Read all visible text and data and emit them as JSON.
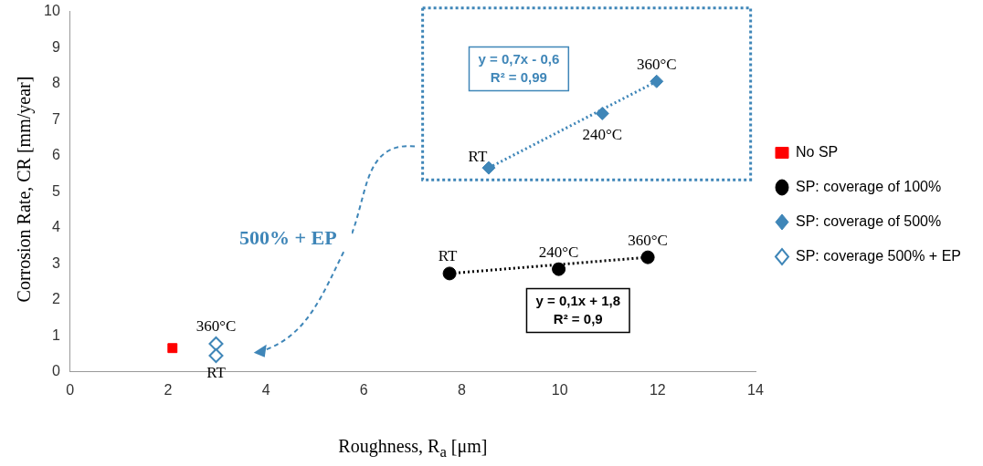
{
  "chart_data": {
    "type": "scatter",
    "xlabel": "Roughness, R$_{a}$ [μm]",
    "ylabel": "Corrosion Rate, CR [mm/year]",
    "xlim": [
      0,
      14
    ],
    "xticks": [
      0,
      2,
      4,
      6,
      8,
      10,
      12,
      14
    ],
    "ylim": [
      0,
      10
    ],
    "yticks": [
      0,
      1,
      2,
      3,
      4,
      5,
      6,
      7,
      8,
      9,
      10
    ],
    "grid": false,
    "legend": "right",
    "series": [
      {
        "name": "No SP",
        "marker": "square",
        "color": "#ff0000",
        "x": [
          2.09
        ],
        "values": [
          0.66
        ]
      },
      {
        "name": "SP: coverage of 100%",
        "marker": "circle",
        "color": "#000000",
        "x": [
          7.75,
          9.98,
          11.8
        ],
        "values": [
          2.73,
          2.85,
          3.18
        ]
      },
      {
        "name": "SP: coverage of 500%",
        "marker": "diamond",
        "color": "#3f86b8",
        "x": [
          8.55,
          10.87,
          11.98
        ],
        "values": [
          5.66,
          7.17,
          8.06
        ]
      },
      {
        "name": "SP: coverage 500% + EP",
        "marker": "diamond",
        "color": "#3f86b8",
        "x": [
          2.98,
          2.98
        ],
        "values": [
          0.78,
          0.45
        ]
      },
      {
        "type": "line",
        "line_style": "dotted",
        "marker": "none",
        "color": "#000000",
        "x": [
          7.75,
          11.8
        ],
        "values": [
          2.73,
          3.18
        ]
      },
      {
        "type": "line",
        "line_style": "dotted",
        "marker": "none",
        "color": "#3f86b8",
        "x": [
          8.55,
          11.98
        ],
        "values": [
          5.66,
          8.06
        ]
      }
    ],
    "annotations": [
      {
        "text": "RT",
        "x": 7.75,
        "y": 2.73
      },
      {
        "text": "240°C",
        "x": 9.98,
        "y": 2.85
      },
      {
        "text": "360°C",
        "x": 11.8,
        "y": 3.18
      },
      {
        "text": "RT",
        "x": 8.55,
        "y": 5.66
      },
      {
        "text": "240°C",
        "x": 10.87,
        "y": 7.17
      },
      {
        "text": "360°C",
        "x": 11.98,
        "y": 8.06
      },
      {
        "text": "360°C",
        "x": 2.98,
        "y": 0.78
      },
      {
        "text": "RT",
        "x": 2.98,
        "y": 0.45
      },
      "y = 0,1x + 1,8\nR² = 0,9",
      "y = 0,7x - 0,6\nR² = 0,99",
      "500% + EP"
    ]
  }
}
